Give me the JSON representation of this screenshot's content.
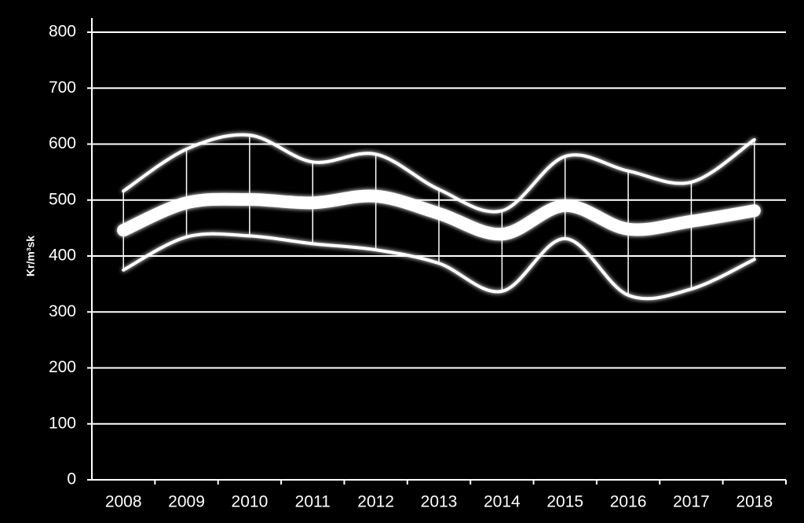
{
  "chart_data": {
    "type": "line",
    "y_label": "Kr/m³sk",
    "categories": [
      "2008",
      "2009",
      "2010",
      "2011",
      "2012",
      "2013",
      "2014",
      "2015",
      "2016",
      "2017",
      "2018"
    ],
    "series": [
      {
        "color": "#ffffff",
        "width": 4,
        "values": [
          516,
          591,
          616,
          568,
          582,
          519,
          481,
          578,
          552,
          532,
          608
        ]
      },
      {
        "color": "#ffffff",
        "width": 16,
        "values": [
          446,
          495,
          501,
          495,
          507,
          476,
          439,
          490,
          448,
          462,
          481
        ]
      },
      {
        "color": "#ffffff",
        "width": 4,
        "values": [
          375,
          434,
          436,
          422,
          411,
          387,
          337,
          431,
          330,
          341,
          394
        ]
      }
    ],
    "smooth": true,
    "hilo_lines": true,
    "ylim": [
      0,
      800
    ],
    "yticks": [
      0,
      100,
      200,
      300,
      400,
      500,
      600,
      700,
      800
    ],
    "grid": true
  }
}
